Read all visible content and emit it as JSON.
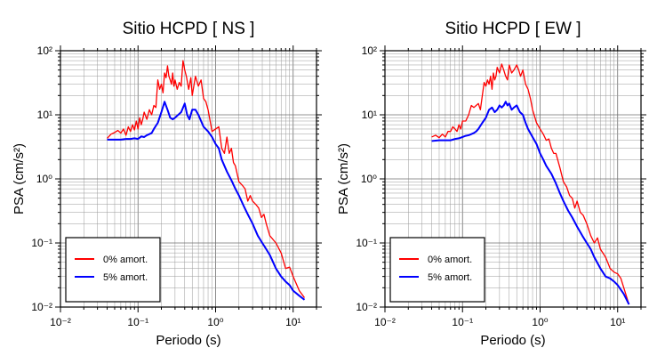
{
  "chart_data": [
    {
      "type": "line",
      "title": "Sitio HCPD [ NS ]",
      "xlabel": "Periodo (s)",
      "ylabel": "PSA (cm/s²)",
      "xscale": "log",
      "yscale": "log",
      "xlim": [
        0.01,
        20
      ],
      "ylim": [
        0.01,
        100
      ],
      "grid": true,
      "legend_position": "bottom-left",
      "series": [
        {
          "name": "0% amort.",
          "color": "#ff0000",
          "x": [
            0.04,
            0.045,
            0.05,
            0.055,
            0.06,
            0.065,
            0.07,
            0.075,
            0.08,
            0.085,
            0.09,
            0.095,
            0.1,
            0.105,
            0.11,
            0.115,
            0.12,
            0.13,
            0.14,
            0.15,
            0.16,
            0.17,
            0.18,
            0.19,
            0.2,
            0.21,
            0.22,
            0.23,
            0.24,
            0.25,
            0.26,
            0.27,
            0.28,
            0.29,
            0.3,
            0.32,
            0.34,
            0.36,
            0.38,
            0.4,
            0.42,
            0.45,
            0.48,
            0.5,
            0.55,
            0.6,
            0.65,
            0.7,
            0.75,
            0.8,
            0.9,
            1.0,
            1.1,
            1.2,
            1.3,
            1.4,
            1.5,
            1.6,
            1.7,
            1.8,
            2.0,
            2.2,
            2.4,
            2.6,
            2.8,
            3.0,
            3.3,
            3.6,
            3.9,
            4.2,
            4.5,
            5,
            6,
            7,
            8,
            9,
            10,
            12,
            14
          ],
          "y": [
            4.3,
            5.0,
            5.3,
            5.7,
            5.2,
            6.0,
            4.8,
            6.5,
            5.5,
            7.0,
            5.8,
            8.0,
            6.0,
            9.0,
            7.0,
            8.5,
            11,
            8.5,
            12,
            10,
            14,
            13,
            35,
            25,
            30,
            22,
            45,
            38,
            58,
            40,
            35,
            30,
            45,
            28,
            35,
            25,
            32,
            28,
            70,
            50,
            40,
            25,
            38,
            20,
            40,
            28,
            35,
            18,
            16,
            12,
            5.5,
            6.0,
            6.5,
            3.0,
            2.5,
            4.5,
            2.5,
            3.0,
            1.8,
            1.6,
            0.9,
            0.8,
            0.7,
            0.45,
            0.55,
            0.45,
            0.4,
            0.35,
            0.25,
            0.28,
            0.2,
            0.13,
            0.1,
            0.07,
            0.04,
            0.042,
            0.03,
            0.018,
            0.014
          ]
        },
        {
          "name": "5% amort.",
          "color": "#0000ff",
          "x": [
            0.04,
            0.05,
            0.06,
            0.07,
            0.08,
            0.09,
            0.1,
            0.11,
            0.12,
            0.13,
            0.14,
            0.15,
            0.16,
            0.18,
            0.2,
            0.22,
            0.24,
            0.26,
            0.28,
            0.3,
            0.33,
            0.36,
            0.4,
            0.43,
            0.46,
            0.5,
            0.55,
            0.6,
            0.65,
            0.7,
            0.8,
            0.9,
            1.0,
            1.1,
            1.2,
            1.4,
            1.6,
            1.8,
            2.0,
            2.3,
            2.6,
            3.0,
            3.5,
            4.0,
            4.5,
            5,
            6,
            7,
            8,
            9,
            10,
            12,
            14
          ],
          "y": [
            4.1,
            4.1,
            4.1,
            4.2,
            4.2,
            4.3,
            4.2,
            4.6,
            4.5,
            4.8,
            5.0,
            5.2,
            6.0,
            7.5,
            11,
            16,
            12,
            9,
            8.5,
            9,
            10,
            11,
            15,
            10,
            8.5,
            12,
            12,
            10,
            8,
            6.5,
            5.5,
            4.5,
            3.5,
            3.0,
            2.0,
            1.3,
            0.95,
            0.7,
            0.55,
            0.38,
            0.28,
            0.2,
            0.13,
            0.1,
            0.08,
            0.065,
            0.04,
            0.03,
            0.025,
            0.022,
            0.018,
            0.015,
            0.013
          ]
        }
      ]
    },
    {
      "type": "line",
      "title": "Sitio HCPD [ EW ]",
      "xlabel": "Periodo (s)",
      "ylabel": "PSA (cm/s²)",
      "xscale": "log",
      "yscale": "log",
      "xlim": [
        0.01,
        20
      ],
      "ylim": [
        0.01,
        100
      ],
      "grid": true,
      "legend_position": "bottom-left",
      "series": [
        {
          "name": "0% amort.",
          "color": "#ff0000",
          "x": [
            0.04,
            0.045,
            0.05,
            0.055,
            0.06,
            0.065,
            0.07,
            0.075,
            0.08,
            0.085,
            0.09,
            0.095,
            0.1,
            0.11,
            0.12,
            0.13,
            0.14,
            0.15,
            0.16,
            0.17,
            0.18,
            0.19,
            0.2,
            0.21,
            0.22,
            0.23,
            0.24,
            0.25,
            0.26,
            0.27,
            0.28,
            0.3,
            0.32,
            0.34,
            0.36,
            0.38,
            0.4,
            0.43,
            0.46,
            0.5,
            0.53,
            0.56,
            0.6,
            0.65,
            0.7,
            0.75,
            0.8,
            0.9,
            1.0,
            1.1,
            1.2,
            1.3,
            1.4,
            1.5,
            1.6,
            1.8,
            2.0,
            2.2,
            2.4,
            2.6,
            2.8,
            3.0,
            3.3,
            3.6,
            4.0,
            4.5,
            5,
            5.5,
            6,
            7,
            8,
            9,
            10,
            11,
            12,
            14
          ],
          "y": [
            4.5,
            4.8,
            4.4,
            5.0,
            4.5,
            5.5,
            5.5,
            6.5,
            6.0,
            5.5,
            7.0,
            6.0,
            8.0,
            8.0,
            10,
            14,
            13,
            14,
            15,
            12,
            20,
            32,
            28,
            35,
            30,
            40,
            25,
            45,
            35,
            40,
            55,
            45,
            62,
            50,
            40,
            35,
            60,
            45,
            50,
            60,
            50,
            40,
            50,
            30,
            25,
            18,
            12,
            7.5,
            6.0,
            5.0,
            4.0,
            4.2,
            3.0,
            2.5,
            2.5,
            1.5,
            0.9,
            0.75,
            0.55,
            0.5,
            0.35,
            0.45,
            0.3,
            0.27,
            0.2,
            0.13,
            0.1,
            0.12,
            0.08,
            0.06,
            0.04,
            0.035,
            0.033,
            0.028,
            0.02,
            0.011
          ]
        },
        {
          "name": "5% amort.",
          "color": "#0000ff",
          "x": [
            0.04,
            0.05,
            0.06,
            0.07,
            0.08,
            0.09,
            0.1,
            0.11,
            0.12,
            0.13,
            0.14,
            0.15,
            0.16,
            0.18,
            0.2,
            0.22,
            0.24,
            0.26,
            0.28,
            0.3,
            0.32,
            0.34,
            0.36,
            0.38,
            0.4,
            0.43,
            0.46,
            0.5,
            0.55,
            0.6,
            0.65,
            0.7,
            0.8,
            0.9,
            1.0,
            1.1,
            1.2,
            1.4,
            1.6,
            1.8,
            2.0,
            2.3,
            2.6,
            3.0,
            3.5,
            4.0,
            4.5,
            5,
            6,
            7,
            8,
            9,
            10,
            12,
            14
          ],
          "y": [
            3.9,
            4.0,
            4.0,
            4.0,
            4.2,
            4.3,
            4.5,
            4.7,
            4.8,
            5.0,
            5.2,
            5.5,
            6.0,
            7.5,
            9.0,
            12,
            13,
            11,
            12,
            14,
            13,
            14,
            16,
            14,
            15,
            12,
            13,
            14,
            11,
            10,
            7.5,
            6.0,
            4.5,
            3.5,
            2.5,
            2.0,
            1.6,
            1.2,
            0.85,
            0.6,
            0.45,
            0.32,
            0.25,
            0.18,
            0.13,
            0.1,
            0.08,
            0.06,
            0.04,
            0.03,
            0.028,
            0.025,
            0.022,
            0.016,
            0.011
          ]
        }
      ]
    }
  ]
}
